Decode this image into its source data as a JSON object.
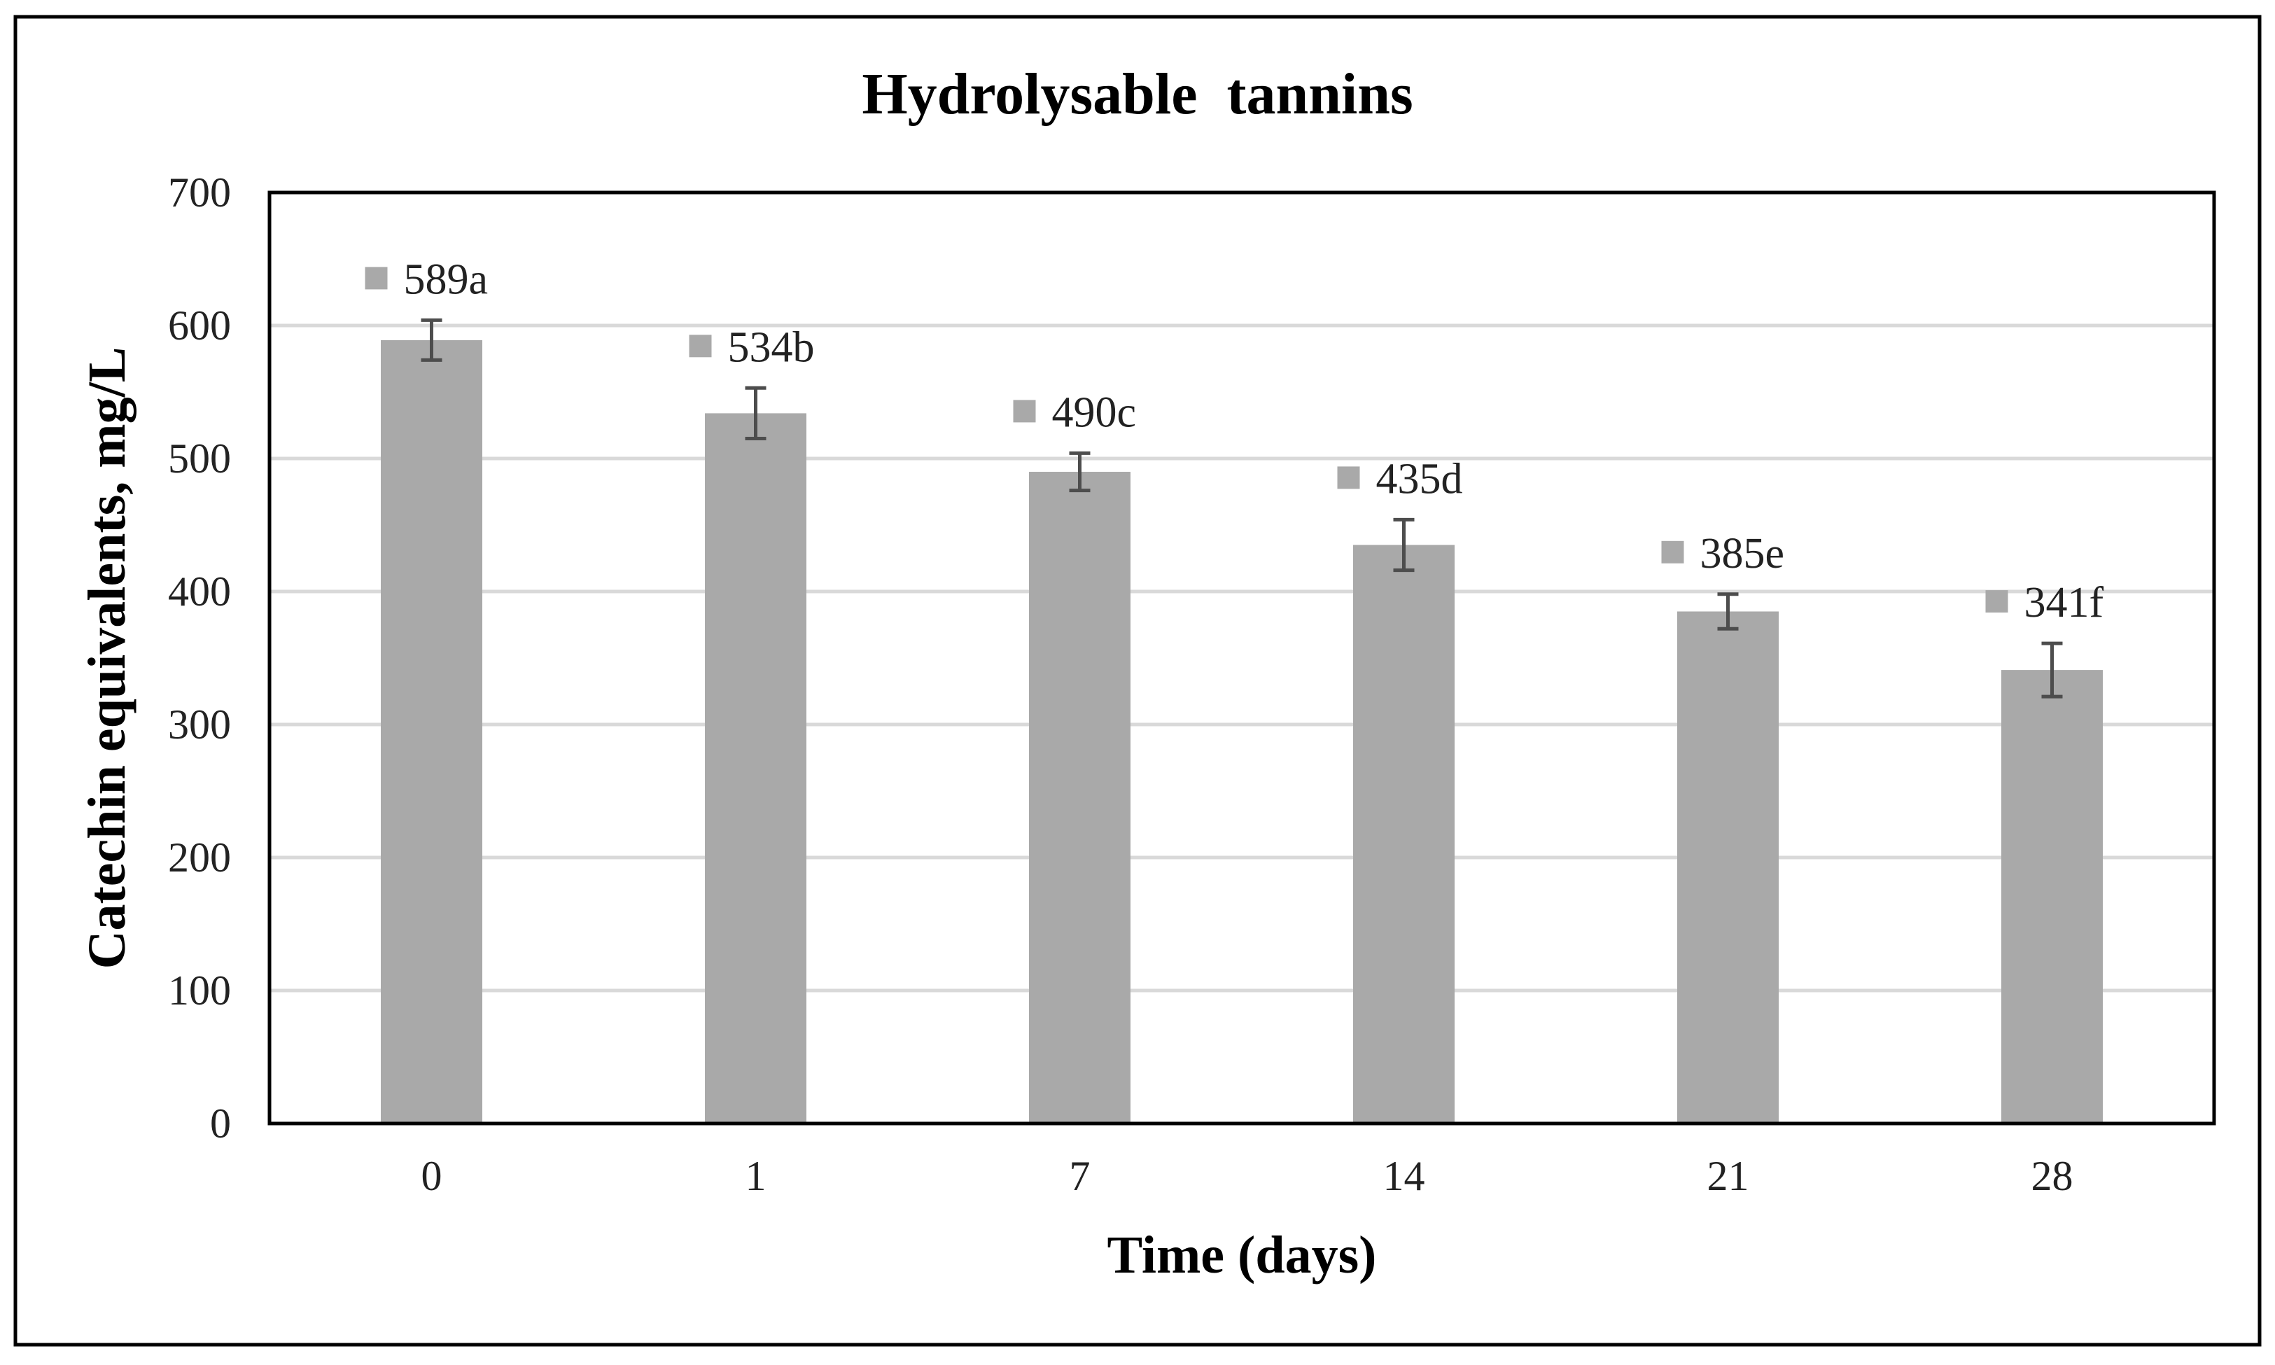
{
  "chart_data": {
    "type": "bar",
    "title": "Hydrolysable  tannins",
    "xlabel": "Time (days)",
    "ylabel": "Catechin equivalents, mg/L",
    "categories": [
      "0",
      "1",
      "7",
      "14",
      "21",
      "28"
    ],
    "values": [
      589,
      534,
      490,
      435,
      385,
      341
    ],
    "errors": [
      15,
      19,
      14,
      19,
      13,
      20
    ],
    "data_labels": [
      "589a",
      "534b",
      "490c",
      "435d",
      "385e",
      "341f"
    ],
    "ylim": [
      0,
      700
    ],
    "yticks": [
      0,
      100,
      200,
      300,
      400,
      500,
      600,
      700
    ],
    "ytick_labels": [
      "0",
      "100",
      "200",
      "300",
      "400",
      "500",
      "600",
      "700"
    ],
    "grid": true,
    "legend": "none",
    "colors": {
      "bar": "#a9a9a9",
      "legend_key": "#a9a9a9",
      "error_bar": "#4d4d4d",
      "grid": "#d9d9d9",
      "axis": "#000000",
      "border": "#000000",
      "text": "#000000"
    }
  }
}
